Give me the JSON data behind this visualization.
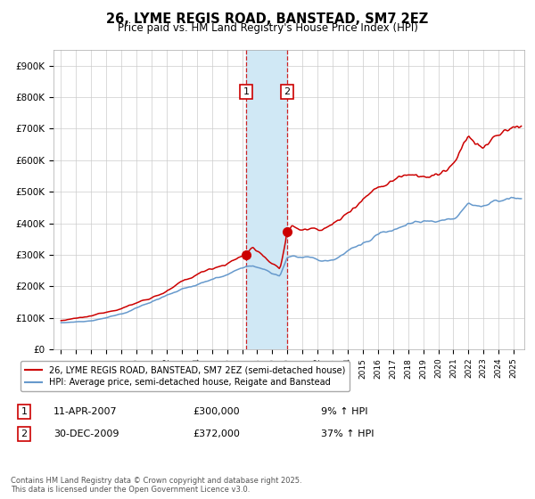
{
  "title1": "26, LYME REGIS ROAD, BANSTEAD, SM7 2EZ",
  "title2": "Price paid vs. HM Land Registry's House Price Index (HPI)",
  "ylim": [
    0,
    950000
  ],
  "yticks": [
    0,
    100000,
    200000,
    300000,
    400000,
    500000,
    600000,
    700000,
    800000,
    900000
  ],
  "ytick_labels": [
    "£0",
    "£100K",
    "£200K",
    "£300K",
    "£400K",
    "£500K",
    "£600K",
    "£700K",
    "£800K",
    "£900K"
  ],
  "marker1": {
    "date": 2007.27,
    "value": 300000,
    "label": "1",
    "text_date": "11-APR-2007",
    "text_value": "£300,000",
    "text_pct": "9% ↑ HPI"
  },
  "marker2": {
    "date": 2009.99,
    "value": 372000,
    "label": "2",
    "text_date": "30-DEC-2009",
    "text_value": "£372,000",
    "text_pct": "37% ↑ HPI"
  },
  "shade_x1": 2007.27,
  "shade_x2": 2009.99,
  "legend_line1": "26, LYME REGIS ROAD, BANSTEAD, SM7 2EZ (semi-detached house)",
  "legend_line2": "HPI: Average price, semi-detached house, Reigate and Banstead",
  "footnote": "Contains HM Land Registry data © Crown copyright and database right 2025.\nThis data is licensed under the Open Government Licence v3.0.",
  "line1_color": "#cc0000",
  "line2_color": "#6699cc",
  "shade_color": "#d0e8f5",
  "grid_color": "#cccccc",
  "background_color": "#ffffff",
  "xlim_left": 1994.5,
  "xlim_right": 2025.7
}
